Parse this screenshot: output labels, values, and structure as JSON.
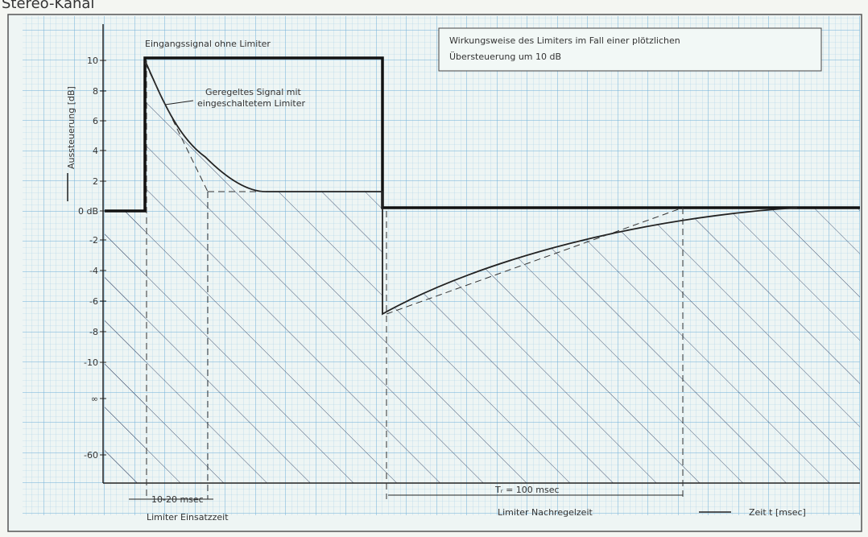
{
  "heading": "Stereo-Kanal",
  "legend_box": {
    "line1": "Wirkungsweise des Limiters im Fall einer plötzlichen",
    "line2": "Übersteuerung um 10 dB"
  },
  "annotations": {
    "input": "Eingangssignal ohne Limiter",
    "regulated_line1": "Geregeltes Signal mit",
    "regulated_line2": "eingeschaltetem Limiter"
  },
  "y_axis": {
    "label": "Aussteuerung [dB]",
    "ticks": [
      "10",
      "8",
      "6",
      "4",
      "2",
      "0 dB",
      "-2",
      "-4",
      "-6",
      "-8",
      "-10",
      "∞",
      "-60"
    ]
  },
  "x_axis": {
    "attack": "10-20 msec",
    "attack_label": "Limiter Einsatzzeit",
    "release": "Tᵣ = 100 msec",
    "release_label": "Limiter Nachregelzeit",
    "label": "Zeit t [msec]"
  }
}
